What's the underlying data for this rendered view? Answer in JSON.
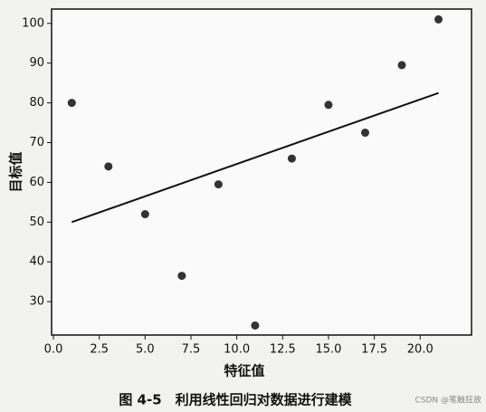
{
  "chart_data": {
    "type": "scatter",
    "caption": "图 4-5　利用线性回归对数据进行建模",
    "watermark": "CSDN @笔触狂放",
    "xlabel": "特征值",
    "ylabel": "目标值",
    "x": [
      1,
      3,
      5,
      7,
      9,
      11,
      13,
      15,
      17,
      19,
      21
    ],
    "values": [
      80,
      64,
      52,
      36.5,
      59.5,
      24,
      66,
      79.5,
      72.5,
      89.5,
      101
    ],
    "color": "#333333",
    "fit_line": {
      "x": [
        1,
        21
      ],
      "values": [
        50,
        82.5
      ],
      "color": "#111111"
    },
    "xlim": [
      -0.1,
      22.8
    ],
    "ylim": [
      21.6,
      103.6
    ],
    "xticks": [
      {
        "value": 0,
        "label": "0.0"
      },
      2.5,
      {
        "value": 5,
        "label": "5.0"
      },
      7.5,
      {
        "value": 10,
        "label": "10.0"
      },
      12.5,
      {
        "value": 15,
        "label": "15.0"
      },
      17.5,
      {
        "value": 20,
        "label": "20.0"
      }
    ],
    "yticks": [
      30,
      40,
      50,
      60,
      70,
      80,
      90,
      100
    ]
  }
}
